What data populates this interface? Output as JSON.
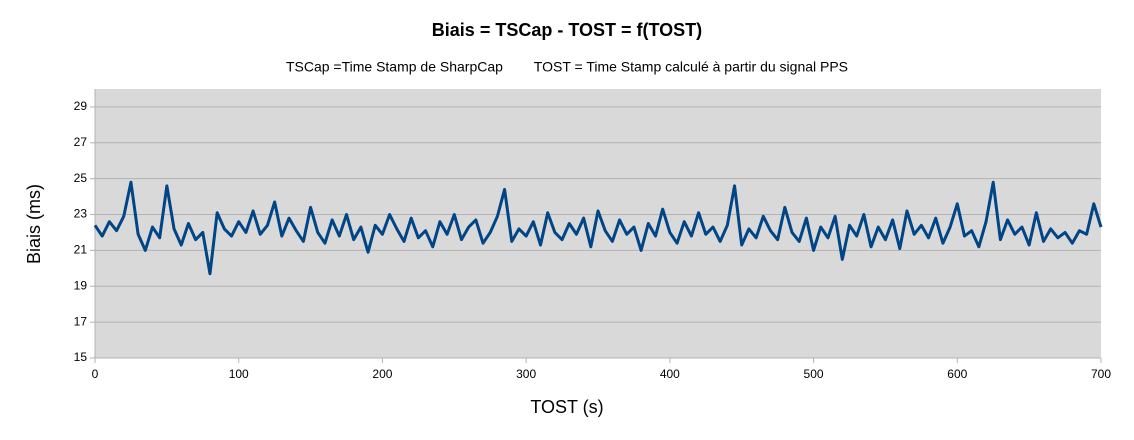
{
  "chart_data": {
    "type": "line",
    "title": "Biais =  TSCap - TOST =  f(TOST)",
    "subtitle": "TSCap =Time Stamp de SharpCap        TOST = Time Stamp calculé à partir du signal PPS",
    "x_label": "TOST (s)",
    "y_label": "Biais (ms)",
    "x": [
      0,
      5,
      10,
      15,
      20,
      25,
      30,
      35,
      40,
      45,
      50,
      55,
      60,
      65,
      70,
      75,
      80,
      85,
      90,
      95,
      100,
      105,
      110,
      115,
      120,
      125,
      130,
      135,
      140,
      145,
      150,
      155,
      160,
      165,
      170,
      175,
      180,
      185,
      190,
      195,
      200,
      205,
      210,
      215,
      220,
      225,
      230,
      235,
      240,
      245,
      250,
      255,
      260,
      265,
      270,
      275,
      280,
      285,
      290,
      295,
      300,
      305,
      310,
      315,
      320,
      325,
      330,
      335,
      340,
      345,
      350,
      355,
      360,
      365,
      370,
      375,
      380,
      385,
      390,
      395,
      400,
      405,
      410,
      415,
      420,
      425,
      430,
      435,
      440,
      445,
      450,
      455,
      460,
      465,
      470,
      475,
      480,
      485,
      490,
      495,
      500,
      505,
      510,
      515,
      520,
      525,
      530,
      535,
      540,
      545,
      550,
      555,
      560,
      565,
      570,
      575,
      580,
      585,
      590,
      595,
      600,
      605,
      610,
      615,
      620,
      625,
      630,
      635,
      640,
      645,
      650,
      655,
      660,
      665,
      670,
      675,
      680,
      685,
      690,
      695,
      700
    ],
    "series": [
      {
        "name": "Biais",
        "color": "#004586",
        "values": [
          22.4,
          21.8,
          22.6,
          22.1,
          22.9,
          24.8,
          21.9,
          21.0,
          22.3,
          21.7,
          24.6,
          22.2,
          21.3,
          22.5,
          21.6,
          22.0,
          19.7,
          23.1,
          22.2,
          21.8,
          22.6,
          22.0,
          23.2,
          21.9,
          22.4,
          23.7,
          21.8,
          22.8,
          22.1,
          21.5,
          23.4,
          22.0,
          21.4,
          22.7,
          21.8,
          23.0,
          21.6,
          22.3,
          20.9,
          22.4,
          21.9,
          23.0,
          22.2,
          21.5,
          22.8,
          21.7,
          22.1,
          21.2,
          22.6,
          21.9,
          23.0,
          21.6,
          22.3,
          22.7,
          21.4,
          22.0,
          22.9,
          24.4,
          21.5,
          22.2,
          21.8,
          22.6,
          21.3,
          23.1,
          22.0,
          21.6,
          22.5,
          21.9,
          22.8,
          21.2,
          23.2,
          22.1,
          21.5,
          22.7,
          21.9,
          22.3,
          21.0,
          22.5,
          21.8,
          23.3,
          22.0,
          21.4,
          22.6,
          21.8,
          23.1,
          21.9,
          22.3,
          21.5,
          22.4,
          24.6,
          21.3,
          22.2,
          21.7,
          22.9,
          22.1,
          21.6,
          23.4,
          22.0,
          21.5,
          22.8,
          21.0,
          22.3,
          21.7,
          22.9,
          20.5,
          22.4,
          21.8,
          23.0,
          21.2,
          22.3,
          21.6,
          22.7,
          21.1,
          23.2,
          21.9,
          22.4,
          21.7,
          22.8,
          21.4,
          22.3,
          23.6,
          21.8,
          22.1,
          21.2,
          22.6,
          24.8,
          21.6,
          22.7,
          21.9,
          22.3,
          21.3,
          23.1,
          21.5,
          22.2,
          21.7,
          22.0,
          21.4,
          22.1,
          21.9,
          23.6,
          22.3
        ]
      }
    ],
    "xlim": [
      0,
      700
    ],
    "xticks": [
      0,
      100,
      200,
      300,
      400,
      500,
      600,
      700
    ],
    "ylim": [
      15,
      30
    ],
    "yticks": [
      15,
      17,
      19,
      21,
      23,
      25,
      27,
      29
    ],
    "grid": true
  }
}
